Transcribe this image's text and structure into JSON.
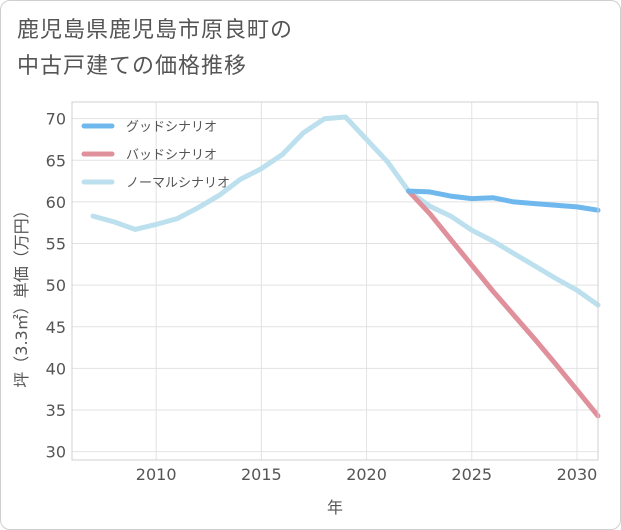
{
  "title_lines": [
    "鹿児島県鹿児島市原良町の",
    "中古戸建ての価格推移"
  ],
  "chart_data": {
    "type": "line",
    "xlabel": "年",
    "ylabel": "坪（3.3㎡）単価（万円）",
    "xlim": [
      2006,
      2031
    ],
    "ylim": [
      29,
      72
    ],
    "x_ticks": [
      2010,
      2015,
      2020,
      2025,
      2030
    ],
    "y_ticks": [
      30,
      35,
      40,
      45,
      50,
      55,
      60,
      65,
      70
    ],
    "grid": true,
    "legend_position": "top-left",
    "series": [
      {
        "name": "グッドシナリオ",
        "color": "#6fb8ee",
        "x": [
          2022,
          2023,
          2024,
          2025,
          2026,
          2027,
          2028,
          2029,
          2030,
          2031
        ],
        "y": [
          61.3,
          61.2,
          60.7,
          60.4,
          60.5,
          60.0,
          59.8,
          59.6,
          59.4,
          59.0
        ]
      },
      {
        "name": "バッドシナリオ",
        "color": "#e0909b",
        "x": [
          2022,
          2023,
          2024,
          2025,
          2026,
          2027,
          2028,
          2029,
          2030,
          2031
        ],
        "y": [
          61.3,
          58.6,
          55.5,
          52.4,
          49.3,
          46.4,
          43.5,
          40.5,
          37.4,
          34.3
        ]
      },
      {
        "name": "ノーマルシナリオ",
        "color": "#bde0ee",
        "x": [
          2007,
          2008,
          2009,
          2010,
          2011,
          2012,
          2013,
          2014,
          2015,
          2016,
          2017,
          2018,
          2019,
          2020,
          2021,
          2022,
          2023,
          2024,
          2025,
          2026,
          2027,
          2028,
          2029,
          2030,
          2031
        ],
        "y": [
          58.3,
          57.6,
          56.7,
          57.3,
          58.0,
          59.3,
          60.8,
          62.7,
          64.0,
          65.7,
          68.3,
          70.0,
          70.2,
          67.5,
          64.8,
          61.3,
          59.5,
          58.3,
          56.6,
          55.3,
          53.8,
          52.3,
          50.8,
          49.4,
          47.6
        ]
      }
    ]
  }
}
